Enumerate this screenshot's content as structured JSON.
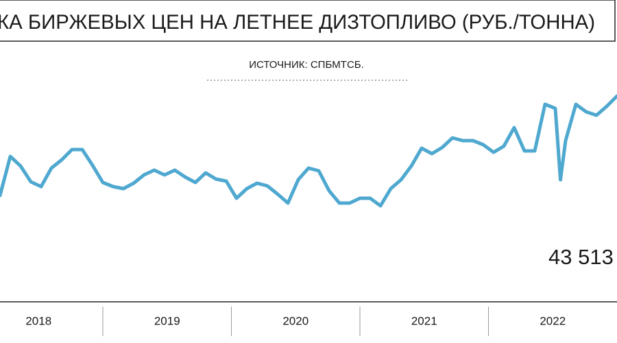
{
  "chart_data": {
    "type": "line",
    "title": "КА БИРЖЕВЫХ ЦЕН НА ЛЕТНЕЕ ДИЗТОПЛИВО (РУБ./ТОННА)",
    "subtitle": "ИСТОЧНИК: СПБМТСБ.",
    "annotation": "43 513",
    "color": "#4fa8cf",
    "xlim": [
      2018.2,
      2023.0
    ],
    "ylim": [
      12000,
      88000
    ],
    "xticks": [
      {
        "value": 2018.5,
        "label": "2018"
      },
      {
        "value": 2019.5,
        "label": "2019"
      },
      {
        "value": 2020.5,
        "label": "2020"
      },
      {
        "value": 2021.5,
        "label": "2021"
      },
      {
        "value": 2022.5,
        "label": "2022"
      }
    ],
    "x": [
      2018.2,
      2018.28,
      2018.36,
      2018.44,
      2018.52,
      2018.6,
      2018.68,
      2018.76,
      2018.84,
      2018.92,
      2019.0,
      2019.08,
      2019.16,
      2019.24,
      2019.32,
      2019.4,
      2019.48,
      2019.56,
      2019.64,
      2019.72,
      2019.8,
      2019.88,
      2019.96,
      2020.04,
      2020.12,
      2020.2,
      2020.28,
      2020.36,
      2020.44,
      2020.52,
      2020.6,
      2020.68,
      2020.76,
      2020.84,
      2020.92,
      2021.0,
      2021.08,
      2021.16,
      2021.24,
      2021.32,
      2021.4,
      2021.48,
      2021.56,
      2021.64,
      2021.72,
      2021.8,
      2021.88,
      2021.96,
      2022.04,
      2022.12,
      2022.2,
      2022.28,
      2022.36,
      2022.44,
      2022.52,
      2022.56,
      2022.6,
      2022.68,
      2022.76,
      2022.84,
      2022.92,
      2023.0
    ],
    "values": [
      43000,
      54400,
      51600,
      47000,
      45600,
      51000,
      53400,
      56400,
      56400,
      51800,
      46800,
      45600,
      45000,
      46600,
      49000,
      50400,
      49000,
      50400,
      48400,
      46800,
      49600,
      47800,
      47200,
      42200,
      45000,
      46600,
      45800,
      43400,
      40800,
      47600,
      51000,
      50200,
      44400,
      40800,
      40800,
      42200,
      42200,
      40000,
      45000,
      47600,
      51600,
      56800,
      55200,
      57000,
      59800,
      59000,
      59000,
      57800,
      55600,
      57400,
      62800,
      56000,
      56000,
      69600,
      68400,
      47600,
      59000,
      69600,
      67400,
      66400,
      69000,
      72000
    ]
  }
}
